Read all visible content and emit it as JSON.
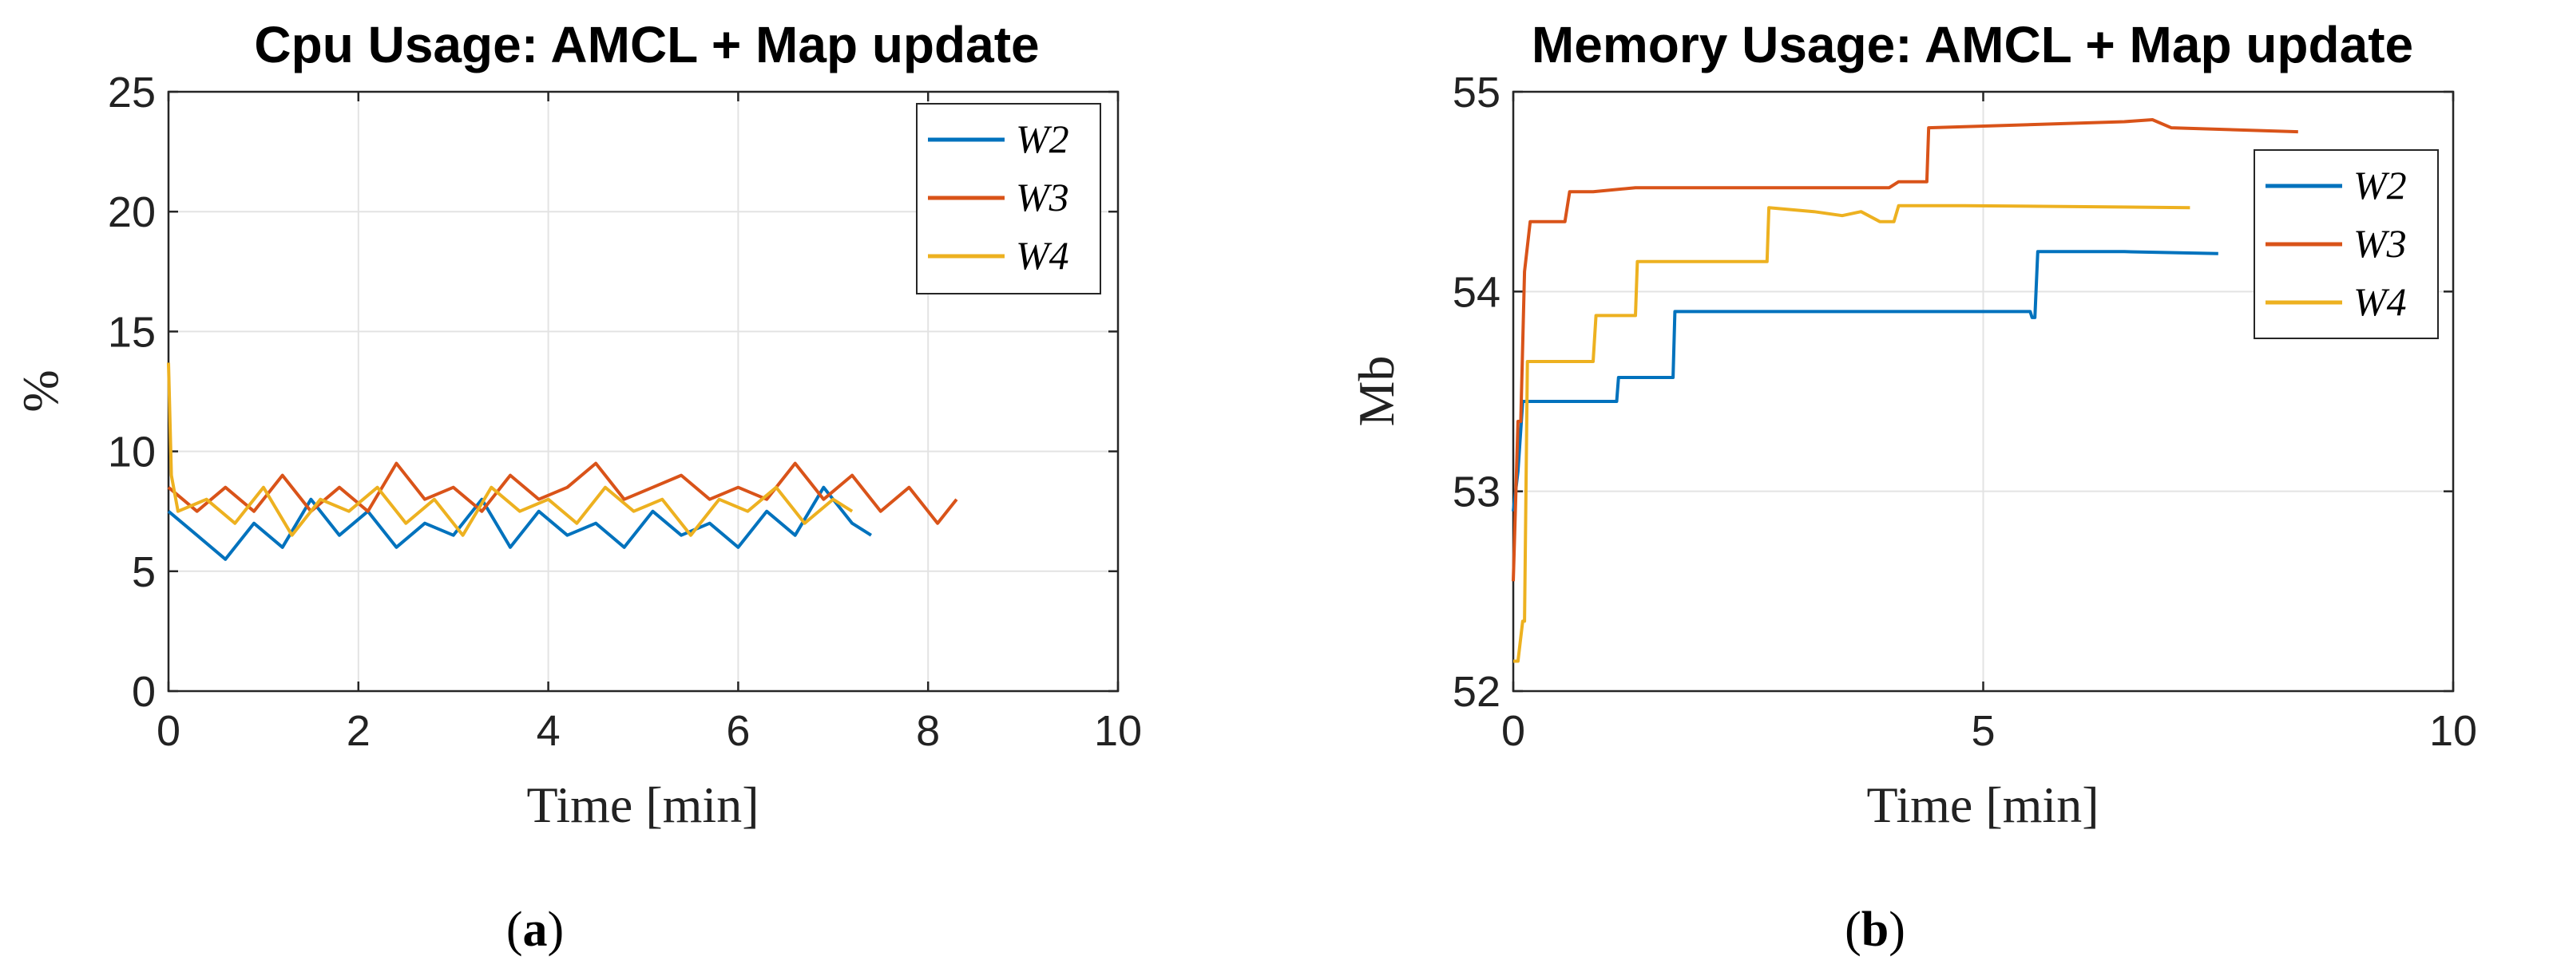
{
  "chart_data": [
    {
      "type": "line",
      "title": "Cpu Usage: AMCL + Map update",
      "xlabel": "Time [min]",
      "ylabel": "%",
      "xlim": [
        0,
        10
      ],
      "ylim": [
        0,
        25
      ],
      "xticks": [
        0,
        2,
        4,
        6,
        8,
        10
      ],
      "yticks": [
        0,
        5,
        10,
        15,
        20,
        25
      ],
      "grid": true,
      "legend": "top-right",
      "caption": "a",
      "series": [
        {
          "name": "W2",
          "color": "#0072BD",
          "x": [
            0,
            0.3,
            0.6,
            0.9,
            1.2,
            1.5,
            1.8,
            2.1,
            2.4,
            2.7,
            3.0,
            3.3,
            3.6,
            3.9,
            4.2,
            4.5,
            4.8,
            5.1,
            5.4,
            5.7,
            6.0,
            6.3,
            6.6,
            6.9,
            7.2,
            7.4
          ],
          "y": [
            7.5,
            6.5,
            5.5,
            7.0,
            6.0,
            8.0,
            6.5,
            7.5,
            6.0,
            7.0,
            6.5,
            8.0,
            6.0,
            7.5,
            6.5,
            7.0,
            6.0,
            7.5,
            6.5,
            7.0,
            6.0,
            7.5,
            6.5,
            8.5,
            7.0,
            6.5
          ]
        },
        {
          "name": "W3",
          "color": "#D95319",
          "x": [
            0,
            0.3,
            0.6,
            0.9,
            1.2,
            1.5,
            1.8,
            2.1,
            2.4,
            2.7,
            3.0,
            3.3,
            3.6,
            3.9,
            4.2,
            4.5,
            4.8,
            5.1,
            5.4,
            5.7,
            6.0,
            6.3,
            6.6,
            6.9,
            7.2,
            7.5,
            7.8,
            8.1,
            8.3
          ],
          "y": [
            8.5,
            7.5,
            8.5,
            7.5,
            9.0,
            7.5,
            8.5,
            7.5,
            9.5,
            8.0,
            8.5,
            7.5,
            9.0,
            8.0,
            8.5,
            9.5,
            8.0,
            8.5,
            9.0,
            8.0,
            8.5,
            8.0,
            9.5,
            8.0,
            9.0,
            7.5,
            8.5,
            7.0,
            8.0
          ]
        },
        {
          "name": "W4",
          "color": "#EDB120",
          "x": [
            0,
            0.03,
            0.1,
            0.4,
            0.7,
            1.0,
            1.3,
            1.6,
            1.9,
            2.2,
            2.5,
            2.8,
            3.1,
            3.4,
            3.7,
            4.0,
            4.3,
            4.6,
            4.9,
            5.2,
            5.5,
            5.8,
            6.1,
            6.4,
            6.7,
            7.0,
            7.2
          ],
          "y": [
            13.7,
            9.0,
            7.5,
            8.0,
            7.0,
            8.5,
            6.5,
            8.0,
            7.5,
            8.5,
            7.0,
            8.0,
            6.5,
            8.5,
            7.5,
            8.0,
            7.0,
            8.5,
            7.5,
            8.0,
            6.5,
            8.0,
            7.5,
            8.5,
            7.0,
            8.0,
            7.5
          ]
        }
      ]
    },
    {
      "type": "line",
      "title": "Memory Usage: AMCL + Map update",
      "xlabel": "Time [min]",
      "ylabel": "Mb",
      "xlim": [
        0,
        10
      ],
      "ylim": [
        52,
        55
      ],
      "xticks": [
        0,
        5,
        10
      ],
      "yticks": [
        52,
        53,
        54,
        55
      ],
      "grid": true,
      "legend": "top-right",
      "caption": "b",
      "series": [
        {
          "name": "W2",
          "color": "#0072BD",
          "x": [
            0,
            0.05,
            0.1,
            0.2,
            1.1,
            1.12,
            1.7,
            1.72,
            4.0,
            5.5,
            5.52,
            5.55,
            5.58,
            6.5,
            7.5
          ],
          "y": [
            52.9,
            53.1,
            53.45,
            53.45,
            53.45,
            53.57,
            53.57,
            53.9,
            53.9,
            53.9,
            53.87,
            53.87,
            54.2,
            54.2,
            54.19
          ]
        },
        {
          "name": "W3",
          "color": "#D95319",
          "x": [
            0,
            0.05,
            0.08,
            0.12,
            0.18,
            0.22,
            0.55,
            0.6,
            0.85,
            1.3,
            2.5,
            4.0,
            4.1,
            4.4,
            4.42,
            6.5,
            6.8,
            7.0,
            8.35
          ],
          "y": [
            52.55,
            53.35,
            53.35,
            54.1,
            54.35,
            54.35,
            54.35,
            54.5,
            54.5,
            54.52,
            54.52,
            54.52,
            54.55,
            54.55,
            54.82,
            54.85,
            54.86,
            54.82,
            54.8
          ]
        },
        {
          "name": "W4",
          "color": "#EDB120",
          "x": [
            0,
            0.05,
            0.1,
            0.12,
            0.15,
            0.2,
            0.35,
            0.85,
            0.88,
            1.3,
            1.32,
            2.7,
            2.72,
            3.2,
            3.5,
            3.7,
            3.9,
            4.05,
            4.1,
            4.8,
            7.2
          ],
          "y": [
            52.15,
            52.15,
            52.35,
            52.35,
            53.65,
            53.65,
            53.65,
            53.65,
            53.88,
            53.88,
            54.15,
            54.15,
            54.42,
            54.4,
            54.38,
            54.4,
            54.35,
            54.35,
            54.43,
            54.43,
            54.42
          ]
        }
      ]
    }
  ]
}
